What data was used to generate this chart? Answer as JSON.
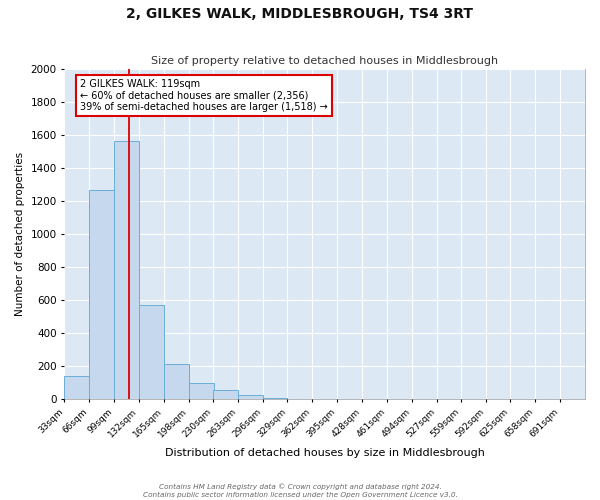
{
  "title": "2, GILKES WALK, MIDDLESBROUGH, TS4 3RT",
  "subtitle": "Size of property relative to detached houses in Middlesbrough",
  "xlabel": "Distribution of detached houses by size in Middlesbrough",
  "ylabel": "Number of detached properties",
  "bar_color": "#c5d8ed",
  "bar_edge_color": "#6aaed6",
  "background_color": "#dce9f5",
  "grid_color": "#ffffff",
  "bin_edges": [
    33,
    66,
    99,
    132,
    165,
    198,
    230,
    263,
    296,
    329,
    362,
    395,
    428,
    461,
    494,
    527,
    559,
    592,
    625,
    658,
    691
  ],
  "bin_labels": [
    "33sqm",
    "66sqm",
    "99sqm",
    "132sqm",
    "165sqm",
    "198sqm",
    "230sqm",
    "263sqm",
    "296sqm",
    "329sqm",
    "362sqm",
    "395sqm",
    "428sqm",
    "461sqm",
    "494sqm",
    "527sqm",
    "559sqm",
    "592sqm",
    "625sqm",
    "658sqm",
    "691sqm"
  ],
  "bar_heights": [
    140,
    1265,
    1565,
    570,
    215,
    100,
    55,
    25,
    10,
    5,
    2,
    2,
    1,
    0,
    0,
    0,
    0,
    0,
    0,
    0
  ],
  "vline_x": 119,
  "vline_color": "#dd0000",
  "ylim": [
    0,
    2000
  ],
  "yticks": [
    0,
    200,
    400,
    600,
    800,
    1000,
    1200,
    1400,
    1600,
    1800,
    2000
  ],
  "annotation_title": "2 GILKES WALK: 119sqm",
  "annotation_line1": "← 60% of detached houses are smaller (2,356)",
  "annotation_line2": "39% of semi-detached houses are larger (1,518) →",
  "footer_line1": "Contains HM Land Registry data © Crown copyright and database right 2024.",
  "footer_line2": "Contains public sector information licensed under the Open Government Licence v3.0."
}
